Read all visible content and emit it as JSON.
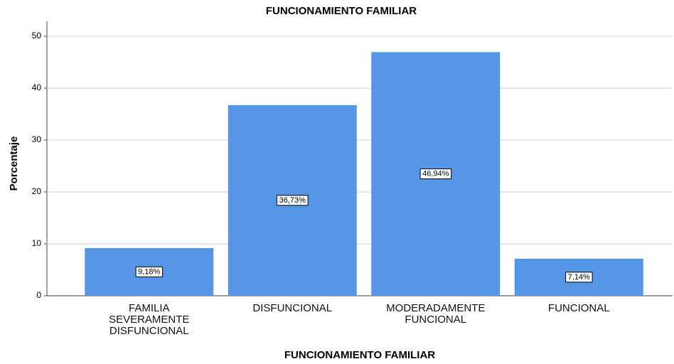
{
  "chart_data": {
    "type": "bar",
    "title": "FUNCIONAMIENTO FAMILIAR",
    "xlabel": "FUNCIONAMIENTO FAMILIAR",
    "ylabel": "Porcentaje",
    "categories": [
      "FAMILIA SEVERAMENTE DISFUNCIONAL",
      "DISFUNCIONAL",
      "MODERADAMENTE FUNCIONAL",
      "FUNCIONAL"
    ],
    "values": [
      9.18,
      36.73,
      46.94,
      7.14
    ],
    "value_labels": [
      "9,18%",
      "36,73%",
      "46,94%",
      "7,14%"
    ],
    "color": "#5596e6",
    "ylim": [
      0,
      50
    ],
    "yticks": [
      0,
      10,
      20,
      30,
      40,
      50
    ],
    "grid": true
  }
}
